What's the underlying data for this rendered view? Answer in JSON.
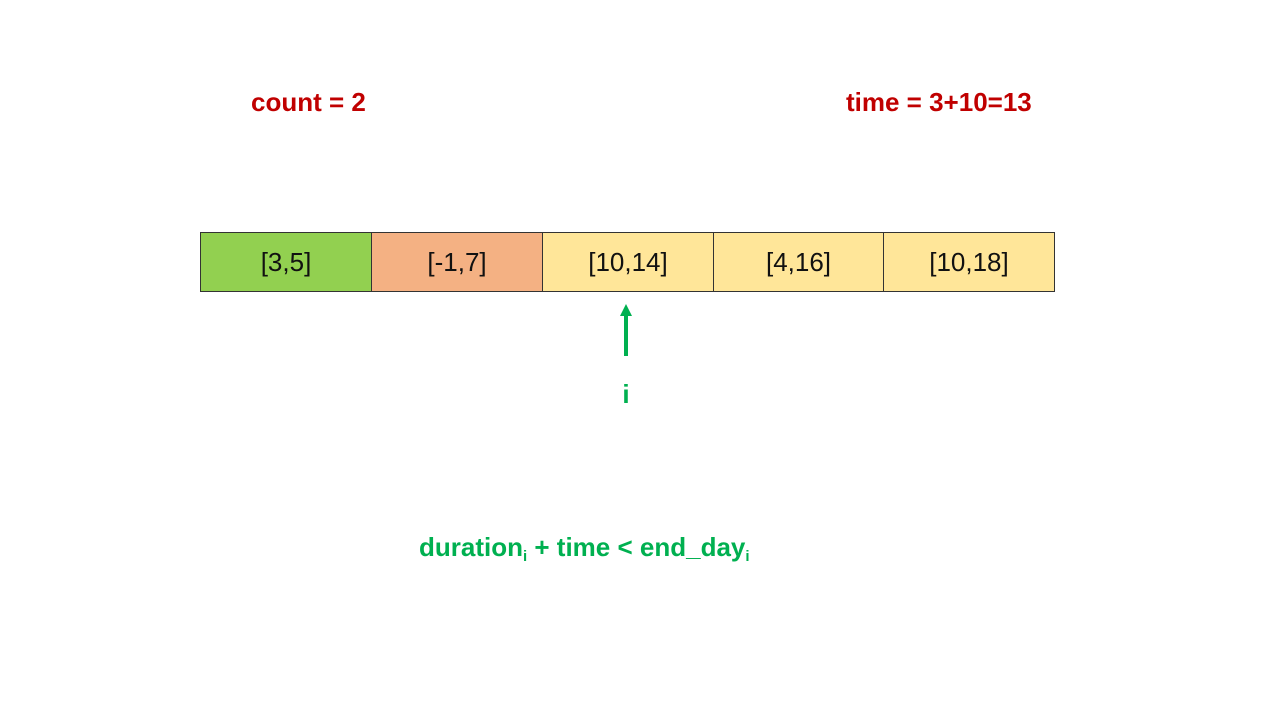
{
  "count_label": "count = 2",
  "time_label": "time = 3+10=13",
  "cells": [
    {
      "text": "[3,5]",
      "color": "#92d050"
    },
    {
      "text": "[-1,7]",
      "color": "#f4b183"
    },
    {
      "text": "[10,14]",
      "color": "#ffe699"
    },
    {
      "text": "[4,16]",
      "color": "#ffe699"
    },
    {
      "text": "[10,18]",
      "color": "#ffe699"
    }
  ],
  "pointer": {
    "label": "i",
    "color": "#00b050"
  },
  "formula": {
    "part1": "duration",
    "sub1": "i",
    "part2": " + time < end_day",
    "sub2": "i"
  }
}
